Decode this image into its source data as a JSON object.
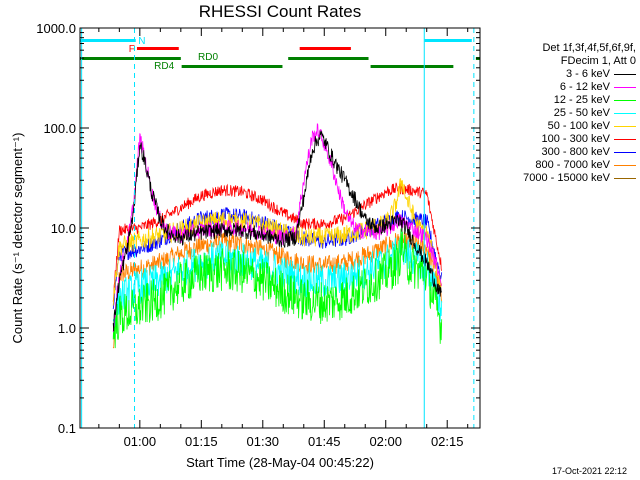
{
  "chart_data": {
    "type": "line",
    "title": "RHESSI Count Rates",
    "ylabel": "Count Rate (s⁻¹ detector segment⁻¹)",
    "xlabel": "Start Time (28-May-04 00:45:22)",
    "yscale": "log",
    "ylim": [
      0.1,
      1000.0
    ],
    "xlim_minutes": [
      45.4,
      143.0
    ],
    "yticks": [
      "0.1",
      "1.0",
      "10.0",
      "100.0",
      "1000.0"
    ],
    "xticks": [
      {
        "label": "01:00",
        "minute": 60
      },
      {
        "label": "01:15",
        "minute": 75
      },
      {
        "label": "01:30",
        "minute": 90
      },
      {
        "label": "01:45",
        "minute": 105
      },
      {
        "label": "02:00",
        "minute": 120
      },
      {
        "label": "02:15",
        "minute": 135
      }
    ],
    "data_span_minutes": [
      53.5,
      133.7
    ],
    "legend": {
      "placement": "right",
      "header": [
        "Det 1f,3f,4f,5f,6f,9f,",
        "FDecim 1, Att 0"
      ]
    },
    "series": [
      {
        "name": "3 - 6 keV",
        "color": "#000000",
        "points": [
          [
            53.5,
            1.0
          ],
          [
            55,
            3.0
          ],
          [
            57,
            6.5
          ],
          [
            58.5,
            15
          ],
          [
            60,
            70
          ],
          [
            61,
            50
          ],
          [
            63,
            22
          ],
          [
            65,
            12
          ],
          [
            67,
            9
          ],
          [
            70,
            8
          ],
          [
            75,
            9
          ],
          [
            80,
            9.5
          ],
          [
            85,
            9.5
          ],
          [
            90,
            8.5
          ],
          [
            95,
            7.5
          ],
          [
            98,
            8
          ],
          [
            100,
            20
          ],
          [
            102,
            60
          ],
          [
            104,
            85
          ],
          [
            105,
            75
          ],
          [
            107,
            50
          ],
          [
            110,
            30
          ],
          [
            113,
            18
          ],
          [
            115,
            12
          ],
          [
            118,
            10
          ],
          [
            121,
            11
          ],
          [
            123,
            12
          ],
          [
            125,
            10
          ],
          [
            128,
            6
          ],
          [
            130,
            4.5
          ],
          [
            133.7,
            2
          ]
        ]
      },
      {
        "name": "6 - 12 keV",
        "color": "#ff00ff",
        "points": [
          [
            53.5,
            1.0
          ],
          [
            55,
            3.5
          ],
          [
            57,
            7
          ],
          [
            58.5,
            18
          ],
          [
            60,
            80
          ],
          [
            61,
            55
          ],
          [
            63,
            22
          ],
          [
            65,
            12
          ],
          [
            67,
            9
          ],
          [
            70,
            8.5
          ],
          [
            75,
            9.5
          ],
          [
            80,
            10
          ],
          [
            85,
            10
          ],
          [
            90,
            9
          ],
          [
            95,
            8
          ],
          [
            98,
            9
          ],
          [
            100,
            30
          ],
          [
            102,
            80
          ],
          [
            103.5,
            95
          ],
          [
            105,
            70
          ],
          [
            107,
            40
          ],
          [
            109,
            20
          ],
          [
            111,
            12
          ],
          [
            113,
            9.5
          ],
          [
            118,
            9
          ],
          [
            121,
            10
          ],
          [
            123,
            12
          ],
          [
            125,
            11
          ],
          [
            128,
            9
          ],
          [
            130,
            8
          ],
          [
            133.7,
            3
          ]
        ]
      },
      {
        "name": "12 - 25 keV",
        "color": "#00ff00",
        "points": [
          [
            53.5,
            0.9
          ],
          [
            55,
            1.3
          ],
          [
            60,
            1.6
          ],
          [
            65,
            2.0
          ],
          [
            70,
            2.8
          ],
          [
            75,
            3.5
          ],
          [
            80,
            3.8
          ],
          [
            85,
            3.6
          ],
          [
            90,
            3.0
          ],
          [
            95,
            2.3
          ],
          [
            100,
            1.9
          ],
          [
            105,
            1.8
          ],
          [
            110,
            2.0
          ],
          [
            115,
            2.6
          ],
          [
            120,
            3.5
          ],
          [
            123,
            4.5
          ],
          [
            124,
            7
          ],
          [
            125,
            4.5
          ],
          [
            128,
            3.8
          ],
          [
            130,
            3.5
          ],
          [
            133.7,
            1.0
          ]
        ]
      },
      {
        "name": "25 - 50 keV",
        "color": "#00ffff",
        "points": [
          [
            53.5,
            1.2
          ],
          [
            55,
            2.0
          ],
          [
            60,
            2.6
          ],
          [
            65,
            3.0
          ],
          [
            70,
            3.8
          ],
          [
            75,
            4.6
          ],
          [
            80,
            5.0
          ],
          [
            85,
            4.8
          ],
          [
            90,
            4.2
          ],
          [
            95,
            3.5
          ],
          [
            100,
            3.0
          ],
          [
            105,
            2.9
          ],
          [
            110,
            3.1
          ],
          [
            115,
            3.7
          ],
          [
            120,
            4.6
          ],
          [
            123,
            5.5
          ],
          [
            124,
            7
          ],
          [
            125,
            5.5
          ],
          [
            128,
            4.7
          ],
          [
            130,
            4.3
          ],
          [
            133.7,
            1.5
          ]
        ]
      },
      {
        "name": "50 - 100 keV",
        "color": "#ffd400",
        "points": [
          [
            53.5,
            2.0
          ],
          [
            55,
            6.5
          ],
          [
            60,
            7.5
          ],
          [
            65,
            8.5
          ],
          [
            70,
            9.5
          ],
          [
            75,
            11
          ],
          [
            80,
            12
          ],
          [
            85,
            11.5
          ],
          [
            90,
            10.5
          ],
          [
            95,
            9
          ],
          [
            100,
            8
          ],
          [
            105,
            8
          ],
          [
            110,
            8.5
          ],
          [
            115,
            9.5
          ],
          [
            120,
            11
          ],
          [
            122,
            15
          ],
          [
            124,
            30
          ],
          [
            125,
            20
          ],
          [
            128,
            10
          ],
          [
            130,
            9
          ],
          [
            133.7,
            2.5
          ]
        ]
      },
      {
        "name": "100 - 300 keV",
        "color": "#ff0000",
        "points": [
          [
            53.5,
            2.0
          ],
          [
            55,
            9.5
          ],
          [
            60,
            10
          ],
          [
            65,
            12
          ],
          [
            70,
            16
          ],
          [
            75,
            21
          ],
          [
            80,
            24
          ],
          [
            85,
            23
          ],
          [
            90,
            19
          ],
          [
            95,
            14
          ],
          [
            100,
            11
          ],
          [
            105,
            11
          ],
          [
            110,
            12.5
          ],
          [
            115,
            17
          ],
          [
            120,
            23
          ],
          [
            123,
            25
          ],
          [
            126,
            24
          ],
          [
            130,
            22
          ],
          [
            133.7,
            4
          ]
        ]
      },
      {
        "name": "300 - 800 keV",
        "color": "#0000ff",
        "points": [
          [
            53.5,
            1.8
          ],
          [
            55,
            5.5
          ],
          [
            60,
            6.2
          ],
          [
            65,
            7.5
          ],
          [
            70,
            10
          ],
          [
            75,
            12.5
          ],
          [
            80,
            13.5
          ],
          [
            85,
            13
          ],
          [
            90,
            11.5
          ],
          [
            95,
            9.5
          ],
          [
            100,
            7.8
          ],
          [
            105,
            7.3
          ],
          [
            110,
            7.8
          ],
          [
            115,
            9.5
          ],
          [
            120,
            11.5
          ],
          [
            123,
            13
          ],
          [
            126,
            12.5
          ],
          [
            130,
            11.5
          ],
          [
            133.7,
            3
          ]
        ]
      },
      {
        "name": "800 - 7000 keV",
        "color": "#ff8000",
        "points": [
          [
            53.5,
            0.6
          ],
          [
            55,
            3.4
          ],
          [
            60,
            3.9
          ],
          [
            65,
            4.5
          ],
          [
            70,
            5.6
          ],
          [
            75,
            6.7
          ],
          [
            80,
            7.2
          ],
          [
            85,
            6.9
          ],
          [
            90,
            6.1
          ],
          [
            95,
            5.1
          ],
          [
            100,
            4.4
          ],
          [
            105,
            4.2
          ],
          [
            110,
            4.5
          ],
          [
            115,
            5.3
          ],
          [
            120,
            6.5
          ],
          [
            123,
            7.5
          ],
          [
            126,
            7
          ],
          [
            130,
            6.4
          ],
          [
            133.7,
            2
          ]
        ]
      },
      {
        "name": "7000 - 15000 keV",
        "color": "#996600",
        "points": []
      }
    ],
    "annotations": {
      "attenuator_label": "N",
      "flare_label": "F",
      "rd0_label": "RD0",
      "rd4_label": "RD4",
      "n_bars_minutes": [
        [
          45.4,
          59
        ],
        [
          129.5,
          141
        ]
      ],
      "f_bars_minutes": [
        [
          59.3,
          69.5
        ],
        [
          99,
          111.5
        ]
      ],
      "rd0_bars_minutes": [
        [
          45.4,
          70
        ],
        [
          96.2,
          115.8
        ],
        [
          142,
          143
        ]
      ],
      "rd4_bars_minutes": [
        [
          70.2,
          94.8
        ],
        [
          116.3,
          136.5
        ]
      ],
      "solid_vlines_minutes": [
        45.8,
        129.4
      ],
      "dashed_vlines_minutes": [
        58.7,
        141.5
      ],
      "colors": {
        "n": "#00e5ff",
        "f": "#ff0000",
        "rd": "#008000"
      }
    },
    "grid": false
  },
  "footer": {
    "timestamp": "17-Oct-2021 22:12"
  }
}
